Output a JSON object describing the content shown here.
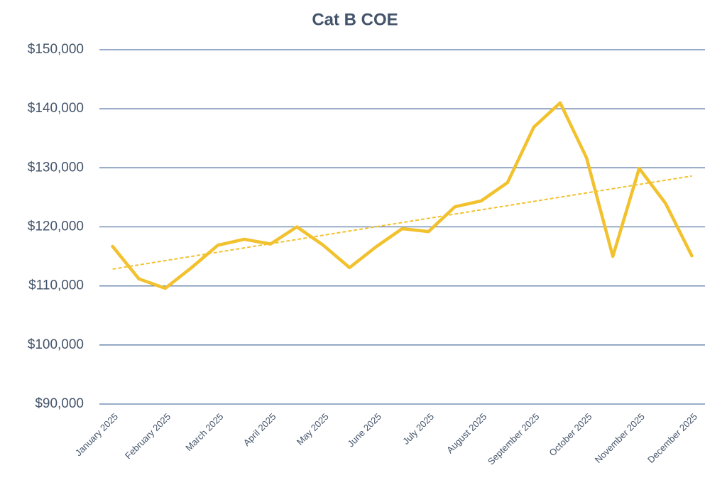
{
  "chart_data": {
    "type": "line",
    "title": "Cat B COE",
    "categories": [
      "January 2025",
      null,
      "February 2025",
      null,
      "March 2025",
      null,
      "April 2025",
      null,
      "May 2025",
      null,
      "June 2025",
      null,
      "July 2025",
      null,
      "August 2025",
      null,
      "September 2025",
      null,
      "October 2025",
      null,
      "November 2025",
      null,
      "December 2025"
    ],
    "series": [
      {
        "name": "Cat B COE",
        "color": "#f2c12e",
        "values": [
          116700,
          111200,
          109600,
          113100,
          116900,
          117900,
          117100,
          120000,
          116900,
          113100,
          116600,
          119700,
          119200,
          123400,
          124400,
          127500,
          136900,
          141000,
          131700,
          115000,
          129900,
          124000,
          115100
        ]
      }
    ],
    "trendline": {
      "type": "linear",
      "color": "#f2c12e",
      "style": "dashed"
    },
    "ylim": [
      90000,
      150000
    ],
    "yticks": [
      {
        "value": 90000,
        "label": "$90,000"
      },
      {
        "value": 100000,
        "label": "$100,000"
      },
      {
        "value": 110000,
        "label": "$110,000"
      },
      {
        "value": 120000,
        "label": "$120,000"
      },
      {
        "value": 130000,
        "label": "$130,000"
      },
      {
        "value": 140000,
        "label": "$140,000"
      },
      {
        "value": 150000,
        "label": "$150,000"
      }
    ],
    "grid": true
  }
}
